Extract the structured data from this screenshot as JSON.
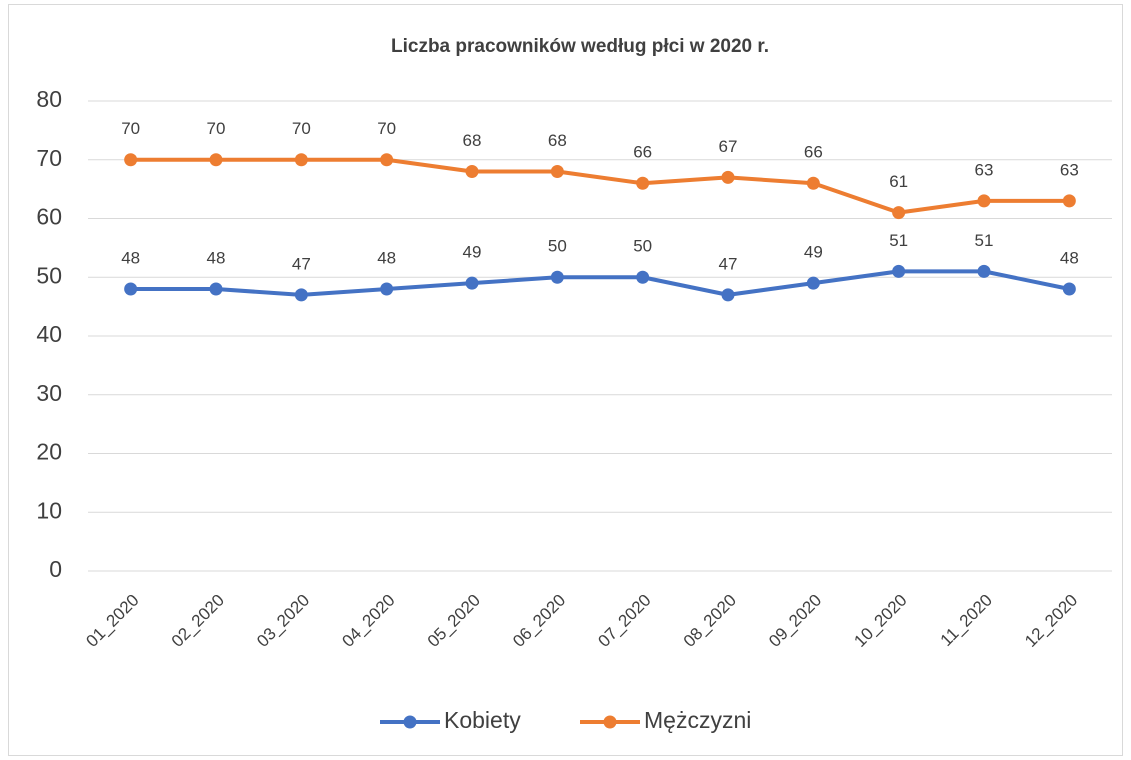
{
  "chart_data": {
    "type": "line",
    "title": "Liczba pracowników według płci w 2020 r.",
    "categories": [
      "01_2020",
      "02_2020",
      "03_2020",
      "04_2020",
      "05_2020",
      "06_2020",
      "07_2020",
      "08_2020",
      "09_2020",
      "10_2020",
      "11_2020",
      "12_2020"
    ],
    "series": [
      {
        "name": "Kobiety",
        "color": "#4472c4",
        "values": [
          48,
          48,
          47,
          48,
          49,
          50,
          50,
          47,
          49,
          51,
          51,
          48
        ]
      },
      {
        "name": "Mężczyzni",
        "color": "#ed7d31",
        "values": [
          70,
          70,
          70,
          70,
          68,
          68,
          66,
          67,
          66,
          61,
          63,
          63
        ]
      }
    ],
    "ylim": [
      0,
      80
    ],
    "yticks": [
      0,
      10,
      20,
      30,
      40,
      50,
      60,
      70,
      80
    ],
    "grid": true,
    "legend": "bottom",
    "data_labels": true
  }
}
